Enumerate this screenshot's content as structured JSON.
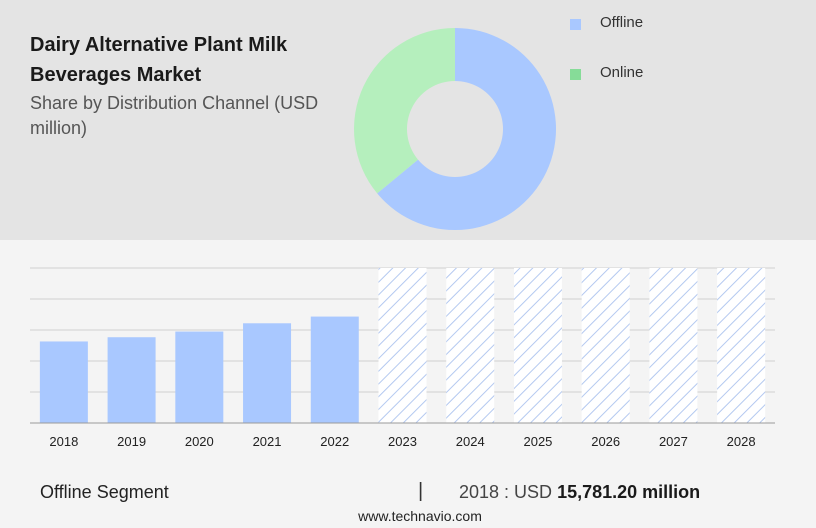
{
  "header": {
    "title": "Dairy Alternative Plant Milk Beverages Market",
    "subtitle": "Share by Distribution Channel (USD million)"
  },
  "legend": [
    {
      "label": "Offline",
      "color": "#a9c8ff"
    },
    {
      "label": "Online",
      "color": "#86dc98"
    }
  ],
  "footer": {
    "segment": "Offline Segment",
    "separator": "|",
    "year_prefix": "2018 : USD ",
    "value": "15,781.20 million"
  },
  "source": "www.technavio.com",
  "colors": {
    "offline": "#a9c8ff",
    "online": "#b5efbd",
    "forecast_hatch": "#b4c9f0",
    "gridline": "#cfcfcf",
    "axis": "#9a9a9a"
  },
  "chart_data": [
    {
      "type": "pie",
      "donut": true,
      "categories": [
        "Offline",
        "Online"
      ],
      "values": [
        64,
        36
      ]
    },
    {
      "type": "bar",
      "categories": [
        "2018",
        "2019",
        "2020",
        "2021",
        "2022",
        "2023",
        "2024",
        "2025",
        "2026",
        "2027",
        "2028"
      ],
      "values": [
        15781.2,
        16600,
        17700,
        19300,
        20600,
        null,
        null,
        null,
        null,
        null,
        null
      ],
      "forecast_categories": [
        "2023",
        "2024",
        "2025",
        "2026",
        "2027",
        "2028"
      ],
      "ylim": [
        0,
        30000
      ],
      "grid": true,
      "xlabel": "",
      "ylabel": ""
    }
  ]
}
